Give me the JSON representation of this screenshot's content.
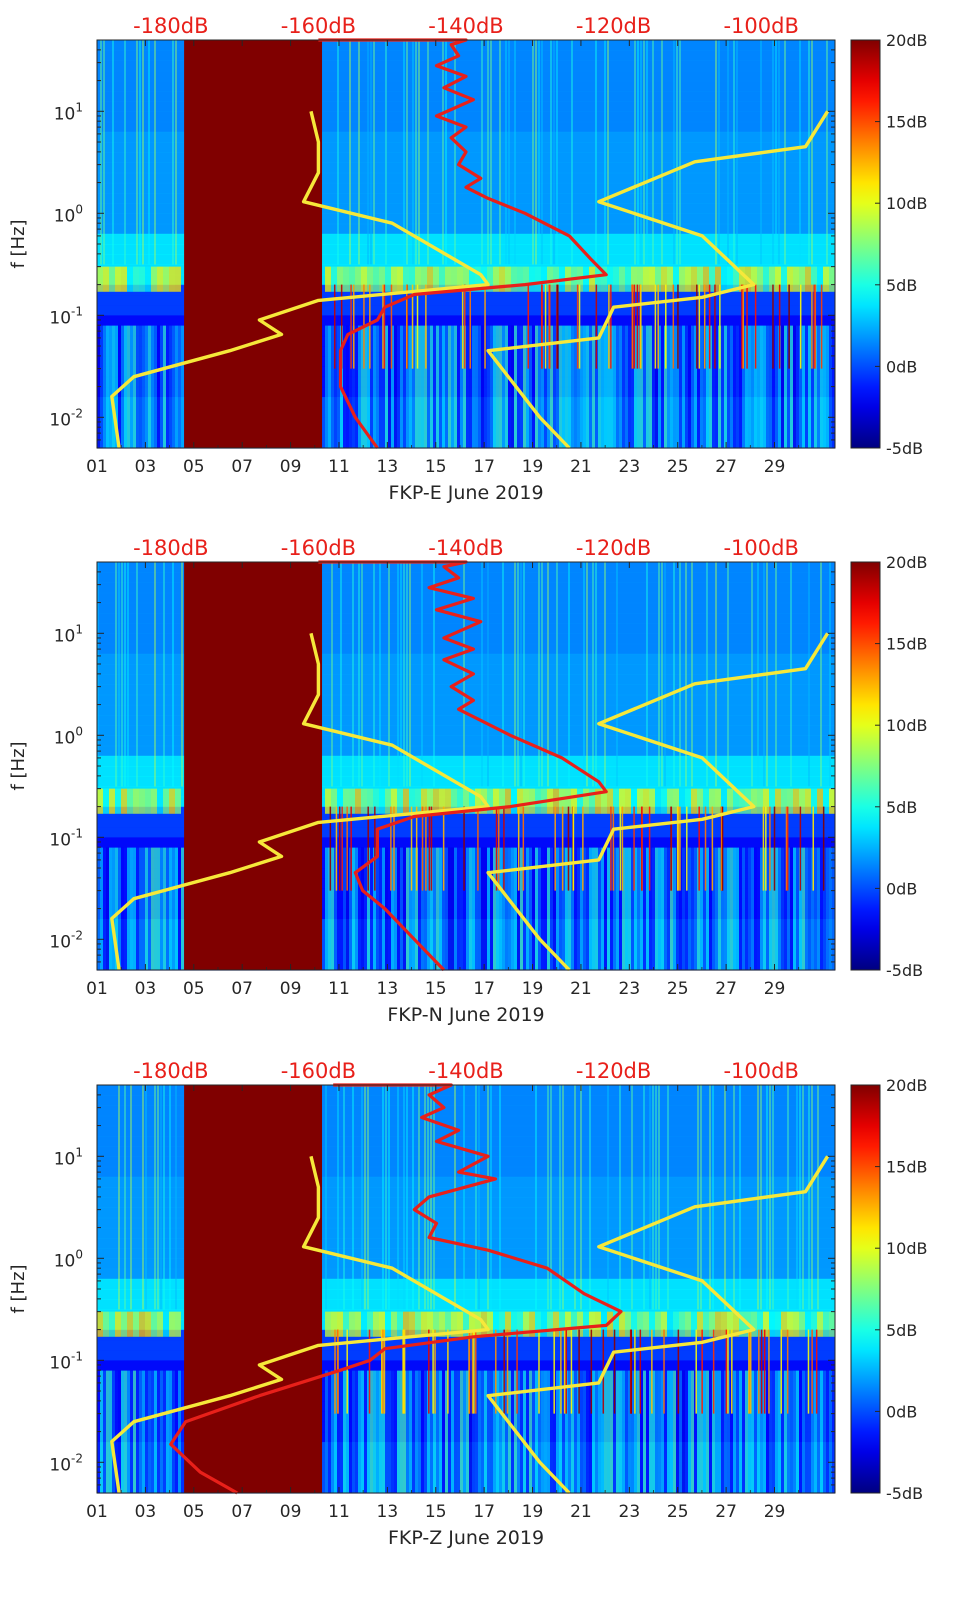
{
  "chart_data": [
    {
      "type": "heatmap",
      "title": "",
      "xlabel": "FKP-E June 2019",
      "ylabel": "f [Hz]",
      "x_ticks": [
        "01",
        "03",
        "05",
        "07",
        "09",
        "11",
        "13",
        "15",
        "17",
        "19",
        "21",
        "23",
        "25",
        "27",
        "29"
      ],
      "x_range_days": [
        1,
        31.5
      ],
      "y_scale": "log",
      "y_range_hz": [
        0.005,
        50
      ],
      "y_ticks": [
        {
          "value": 0.01,
          "base": "10",
          "exp": "-2"
        },
        {
          "value": 0.1,
          "base": "10",
          "exp": "-1"
        },
        {
          "value": 1,
          "base": "10",
          "exp": "0"
        },
        {
          "value": 10,
          "base": "10",
          "exp": "1"
        }
      ],
      "top_axis_labels": [
        "-180dB",
        "-160dB",
        "-140dB",
        "-120dB",
        "-100dB"
      ],
      "top_axis_range_db": [
        -190,
        -90
      ],
      "colorbar": {
        "ticks": [
          "20dB",
          "15dB",
          "10dB",
          "5dB",
          "0dB",
          "-5dB"
        ],
        "range_db": [
          -5,
          20
        ],
        "colormap": "jet"
      },
      "data_gap_days": [
        4.6,
        10.3
      ],
      "series": [
        {
          "role": "low-noise model",
          "color": "#f6e83a",
          "points_db_hz": [
            [
              -161,
              10
            ],
            [
              -160,
              5
            ],
            [
              -160,
              2.5
            ],
            [
              -162,
              1.3
            ],
            [
              -150,
              0.8
            ],
            [
              -138,
              0.25
            ],
            [
              -137,
              0.2
            ],
            [
              -160,
              0.14
            ],
            [
              -168,
              0.09
            ],
            [
              -165,
              0.065
            ],
            [
              -172,
              0.045
            ],
            [
              -185,
              0.025
            ],
            [
              -188,
              0.016
            ],
            [
              -187,
              0.005
            ]
          ]
        },
        {
          "role": "high-noise model",
          "color": "#f6e83a",
          "points_db_hz": [
            [
              -91,
              10
            ],
            [
              -94,
              4.5
            ],
            [
              -109,
              3.2
            ],
            [
              -122,
              1.3
            ],
            [
              -108,
              0.6
            ],
            [
              -101,
              0.2
            ],
            [
              -108,
              0.15
            ],
            [
              -120,
              0.12
            ],
            [
              -122,
              0.06
            ],
            [
              -137,
              0.045
            ],
            [
              -130,
              0.01
            ],
            [
              -126,
              0.005
            ]
          ]
        },
        {
          "role": "station median PSD",
          "color": "#e8201a",
          "points_db_hz": [
            [
              -160,
              50
            ],
            [
              -140,
              50
            ],
            [
              -142,
              45
            ],
            [
              -141,
              35
            ],
            [
              -144,
              28
            ],
            [
              -140,
              22
            ],
            [
              -143,
              17
            ],
            [
              -139,
              13
            ],
            [
              -144,
              9
            ],
            [
              -140,
              7
            ],
            [
              -142,
              5.5
            ],
            [
              -140,
              4
            ],
            [
              -141,
              3
            ],
            [
              -138,
              2.2
            ],
            [
              -140,
              1.8
            ],
            [
              -137,
              1.4
            ],
            [
              -132,
              1
            ],
            [
              -126,
              0.6
            ],
            [
              -123,
              0.35
            ],
            [
              -121,
              0.25
            ],
            [
              -132,
              0.2
            ],
            [
              -147,
              0.16
            ],
            [
              -151,
              0.12
            ],
            [
              -152,
              0.09
            ],
            [
              -156,
              0.065
            ],
            [
              -157,
              0.045
            ],
            [
              -157,
              0.03
            ],
            [
              -157,
              0.02
            ],
            [
              -155,
              0.01
            ],
            [
              -152,
              0.005
            ]
          ]
        }
      ]
    },
    {
      "type": "heatmap",
      "title": "",
      "xlabel": "FKP-N June 2019",
      "ylabel": "f [Hz]",
      "x_ticks": [
        "01",
        "03",
        "05",
        "07",
        "09",
        "11",
        "13",
        "15",
        "17",
        "19",
        "21",
        "23",
        "25",
        "27",
        "29"
      ],
      "x_range_days": [
        1,
        31.5
      ],
      "y_scale": "log",
      "y_range_hz": [
        0.005,
        50
      ],
      "y_ticks": [
        {
          "value": 0.01,
          "base": "10",
          "exp": "-2"
        },
        {
          "value": 0.1,
          "base": "10",
          "exp": "-1"
        },
        {
          "value": 1,
          "base": "10",
          "exp": "0"
        },
        {
          "value": 10,
          "base": "10",
          "exp": "1"
        }
      ],
      "top_axis_labels": [
        "-180dB",
        "-160dB",
        "-140dB",
        "-120dB",
        "-100dB"
      ],
      "top_axis_range_db": [
        -190,
        -90
      ],
      "colorbar": {
        "ticks": [
          "20dB",
          "15dB",
          "10dB",
          "5dB",
          "0dB",
          "-5dB"
        ],
        "range_db": [
          -5,
          20
        ],
        "colormap": "jet"
      },
      "data_gap_days": [
        4.6,
        10.3
      ],
      "series": [
        {
          "role": "low-noise model",
          "color": "#f6e83a",
          "points_db_hz": [
            [
              -161,
              10
            ],
            [
              -160,
              5
            ],
            [
              -160,
              2.5
            ],
            [
              -162,
              1.3
            ],
            [
              -150,
              0.8
            ],
            [
              -138,
              0.25
            ],
            [
              -137,
              0.2
            ],
            [
              -160,
              0.14
            ],
            [
              -168,
              0.09
            ],
            [
              -165,
              0.065
            ],
            [
              -172,
              0.045
            ],
            [
              -185,
              0.025
            ],
            [
              -188,
              0.016
            ],
            [
              -187,
              0.005
            ]
          ]
        },
        {
          "role": "high-noise model",
          "color": "#f6e83a",
          "points_db_hz": [
            [
              -91,
              10
            ],
            [
              -94,
              4.5
            ],
            [
              -109,
              3.2
            ],
            [
              -122,
              1.3
            ],
            [
              -108,
              0.6
            ],
            [
              -101,
              0.2
            ],
            [
              -108,
              0.15
            ],
            [
              -120,
              0.12
            ],
            [
              -122,
              0.06
            ],
            [
              -137,
              0.045
            ],
            [
              -130,
              0.01
            ],
            [
              -126,
              0.005
            ]
          ]
        },
        {
          "role": "station median PSD",
          "color": "#e8201a",
          "points_db_hz": [
            [
              -160,
              50
            ],
            [
              -140,
              50
            ],
            [
              -143,
              45
            ],
            [
              -141,
              35
            ],
            [
              -145,
              28
            ],
            [
              -139,
              22
            ],
            [
              -144,
              17
            ],
            [
              -138,
              13
            ],
            [
              -143,
              9
            ],
            [
              -139,
              7
            ],
            [
              -143,
              5.5
            ],
            [
              -139,
              4
            ],
            [
              -142,
              3
            ],
            [
              -139,
              2.2
            ],
            [
              -141,
              1.8
            ],
            [
              -138,
              1.4
            ],
            [
              -134,
              1
            ],
            [
              -127,
              0.6
            ],
            [
              -122,
              0.35
            ],
            [
              -121,
              0.28
            ],
            [
              -134,
              0.2
            ],
            [
              -147,
              0.16
            ],
            [
              -152,
              0.12
            ],
            [
              -152,
              0.09
            ],
            [
              -152,
              0.065
            ],
            [
              -155,
              0.045
            ],
            [
              -154,
              0.03
            ],
            [
              -151,
              0.02
            ],
            [
              -147,
              0.01
            ],
            [
              -143,
              0.005
            ]
          ]
        }
      ]
    },
    {
      "type": "heatmap",
      "title": "",
      "xlabel": "FKP-Z June 2019",
      "ylabel": "f [Hz]",
      "x_ticks": [
        "01",
        "03",
        "05",
        "07",
        "09",
        "11",
        "13",
        "15",
        "17",
        "19",
        "21",
        "23",
        "25",
        "27",
        "29"
      ],
      "x_range_days": [
        1,
        31.5
      ],
      "y_scale": "log",
      "y_range_hz": [
        0.005,
        50
      ],
      "y_ticks": [
        {
          "value": 0.01,
          "base": "10",
          "exp": "-2"
        },
        {
          "value": 0.1,
          "base": "10",
          "exp": "-1"
        },
        {
          "value": 1,
          "base": "10",
          "exp": "0"
        },
        {
          "value": 10,
          "base": "10",
          "exp": "1"
        }
      ],
      "top_axis_labels": [
        "-180dB",
        "-160dB",
        "-140dB",
        "-120dB",
        "-100dB"
      ],
      "top_axis_range_db": [
        -190,
        -90
      ],
      "colorbar": {
        "ticks": [
          "20dB",
          "15dB",
          "10dB",
          "5dB",
          "0dB",
          "-5dB"
        ],
        "range_db": [
          -5,
          20
        ],
        "colormap": "jet"
      },
      "data_gap_days": [
        4.6,
        10.3
      ],
      "series": [
        {
          "role": "low-noise model",
          "color": "#f6e83a",
          "points_db_hz": [
            [
              -161,
              10
            ],
            [
              -160,
              5
            ],
            [
              -160,
              2.5
            ],
            [
              -162,
              1.3
            ],
            [
              -150,
              0.8
            ],
            [
              -138,
              0.25
            ],
            [
              -137,
              0.2
            ],
            [
              -160,
              0.14
            ],
            [
              -168,
              0.09
            ],
            [
              -165,
              0.065
            ],
            [
              -172,
              0.045
            ],
            [
              -185,
              0.025
            ],
            [
              -188,
              0.016
            ],
            [
              -187,
              0.005
            ]
          ]
        },
        {
          "role": "high-noise model",
          "color": "#f6e83a",
          "points_db_hz": [
            [
              -91,
              10
            ],
            [
              -94,
              4.5
            ],
            [
              -109,
              3.2
            ],
            [
              -122,
              1.3
            ],
            [
              -108,
              0.6
            ],
            [
              -101,
              0.2
            ],
            [
              -108,
              0.15
            ],
            [
              -120,
              0.12
            ],
            [
              -122,
              0.06
            ],
            [
              -137,
              0.045
            ],
            [
              -130,
              0.01
            ],
            [
              -126,
              0.005
            ]
          ]
        },
        {
          "role": "station median PSD",
          "color": "#e8201a",
          "points_db_hz": [
            [
              -158,
              50
            ],
            [
              -142,
              50
            ],
            [
              -145,
              40
            ],
            [
              -143,
              30
            ],
            [
              -146,
              24
            ],
            [
              -141,
              18
            ],
            [
              -144,
              14
            ],
            [
              -137,
              10
            ],
            [
              -141,
              7
            ],
            [
              -136,
              6
            ],
            [
              -145,
              4
            ],
            [
              -147,
              3
            ],
            [
              -144,
              2.2
            ],
            [
              -145,
              1.6
            ],
            [
              -137,
              1.2
            ],
            [
              -129,
              0.8
            ],
            [
              -124,
              0.45
            ],
            [
              -119,
              0.3
            ],
            [
              -121,
              0.22
            ],
            [
              -139,
              0.17
            ],
            [
              -151,
              0.13
            ],
            [
              -153,
              0.1
            ],
            [
              -157,
              0.08
            ],
            [
              -168,
              0.045
            ],
            [
              -178,
              0.025
            ],
            [
              -180,
              0.015
            ],
            [
              -176,
              0.008
            ],
            [
              -171,
              0.005
            ]
          ]
        }
      ]
    }
  ]
}
